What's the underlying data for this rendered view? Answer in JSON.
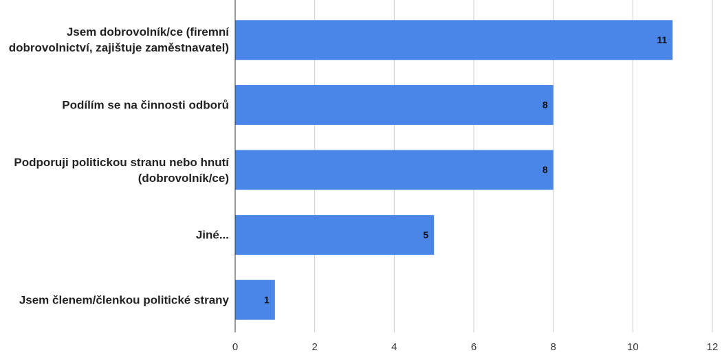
{
  "chart_data": {
    "type": "bar",
    "orientation": "horizontal",
    "categories": [
      "Jsem dobrovolník/ce (firemní dobrovolnictví, zajištuje zaměstnavatel)",
      "Podílím se na činnosti odborů",
      "Podporuji politickou stranu nebo hnutí (dobrovolník/ce)",
      "Jiné...",
      "Jsem členem/členkou politické strany"
    ],
    "values": [
      11,
      8,
      8,
      5,
      1
    ],
    "color": "#4a86e8",
    "xlim": [
      0,
      12
    ],
    "xticks": [
      0,
      2,
      4,
      6,
      8,
      10,
      12
    ],
    "grid": true
  }
}
